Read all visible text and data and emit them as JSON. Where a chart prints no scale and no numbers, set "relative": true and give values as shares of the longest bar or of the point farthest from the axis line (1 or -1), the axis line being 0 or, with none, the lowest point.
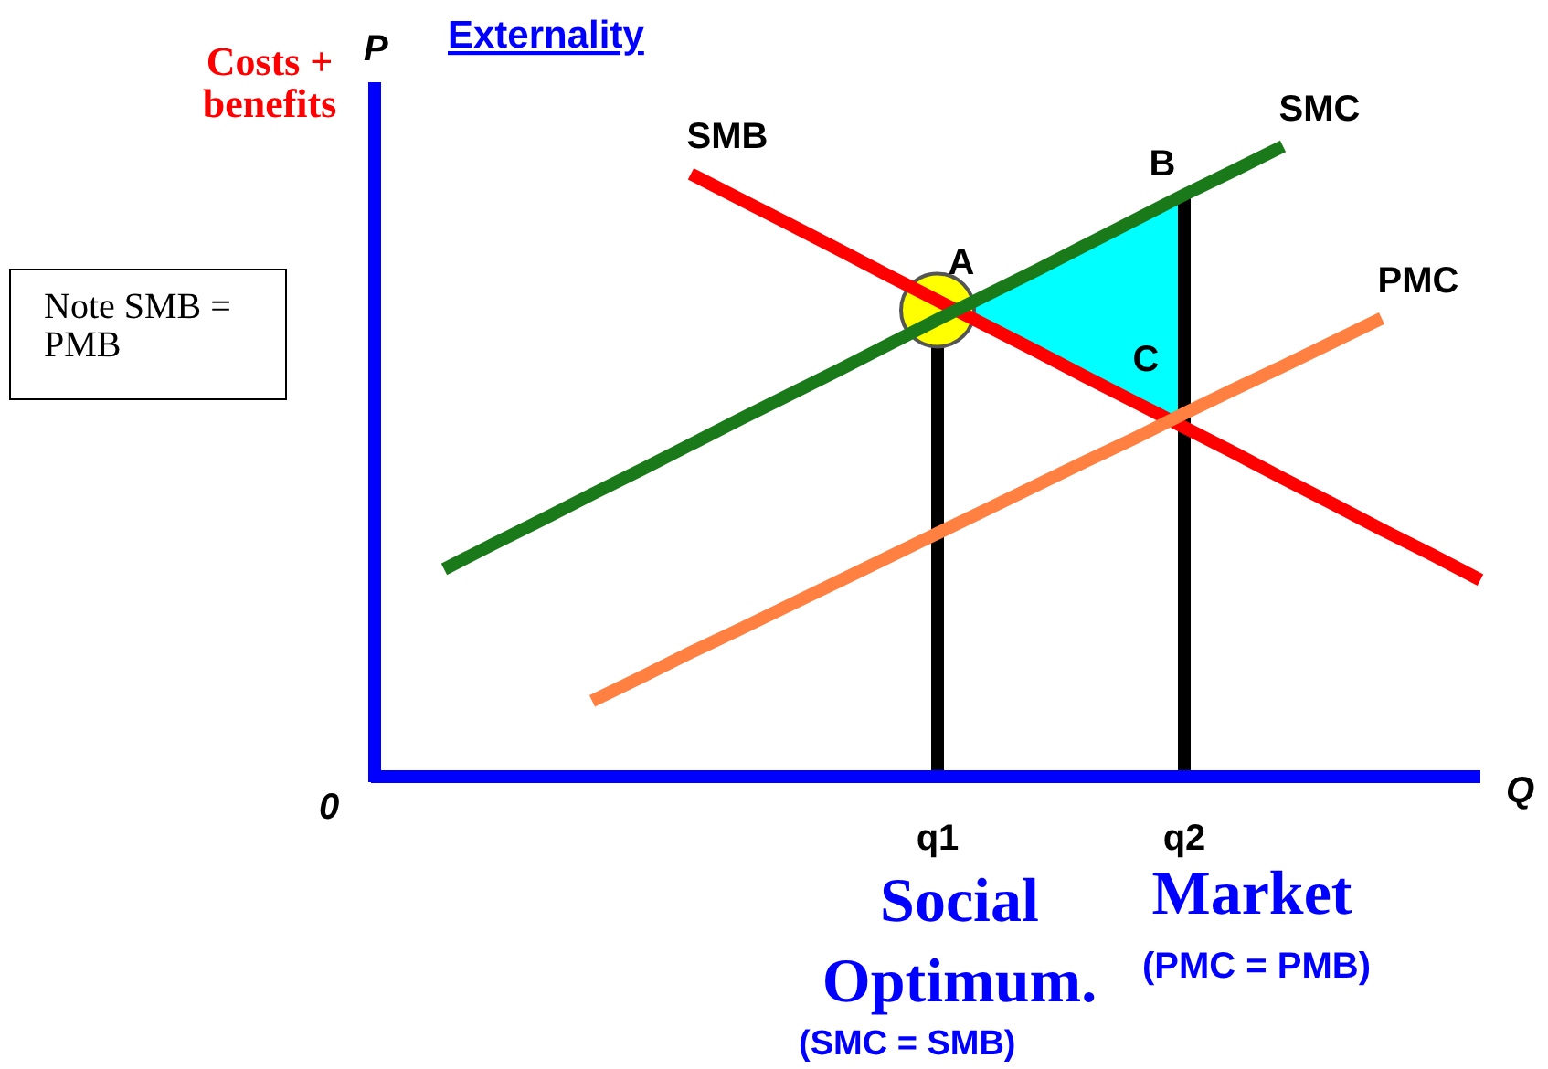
{
  "chart_data": {
    "type": "line",
    "title": "Externality",
    "xlabel": "Q",
    "ylabel": "P",
    "relative": true,
    "categories": [
      null,
      null,
      null,
      null,
      null,
      null,
      null,
      null,
      null,
      null,
      "q1",
      null,
      null,
      null,
      null,
      "q2",
      null,
      null,
      null,
      null,
      null,
      null
    ],
    "series": [
      {
        "name": "SMB",
        "color": "#ff0000",
        "values": [
          null,
          null,
          null,
          null,
          null,
          0.956,
          0.916,
          0.876,
          0.836,
          0.795,
          0.755,
          0.715,
          0.675,
          0.634,
          0.594,
          0.554,
          0.514,
          0.473,
          0.433,
          0.392,
          0.353,
          0.312
        ]
      },
      {
        "name": "SMC",
        "color": "#1a7a1a",
        "values": [
          0.329,
          0.369,
          0.408,
          0.448,
          0.487,
          0.527,
          0.567,
          0.606,
          0.645,
          0.685,
          0.725,
          0.764,
          0.803,
          0.843,
          0.883,
          0.923,
          0.961,
          1.0,
          null,
          null,
          null,
          null
        ]
      },
      {
        "name": "PMC",
        "color": "#ff8040",
        "values": [
          null,
          null,
          null,
          0.12,
          0.158,
          0.197,
          0.234,
          0.272,
          0.31,
          0.348,
          0.386,
          0.424,
          0.462,
          0.5,
          0.537,
          0.576,
          0.614,
          0.651,
          0.689,
          0.727,
          null,
          null
        ]
      }
    ],
    "ref_lines": [
      {
        "axis": "x",
        "value": "q1",
        "color": "#000000"
      },
      {
        "axis": "x",
        "value": "q2",
        "color": "#000000"
      }
    ],
    "annotations": [
      "A",
      "B",
      "C",
      "0",
      "Costs + benefits",
      "Note SMB = PMB",
      "Social Optimum.",
      "(SMC = SMB)",
      "Market",
      "(PMC = PMB)"
    ]
  }
}
